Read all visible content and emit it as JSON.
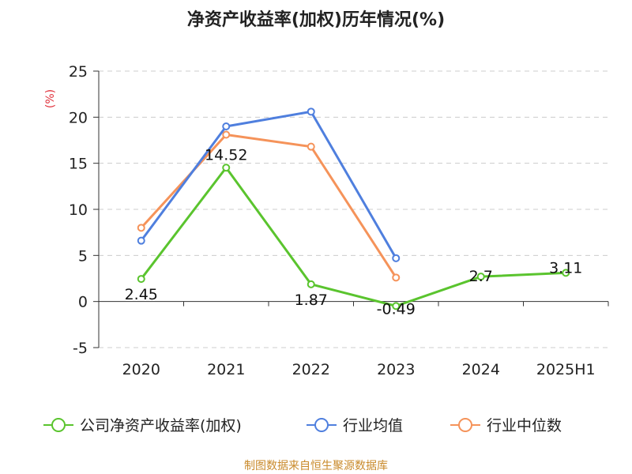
{
  "chart_data": {
    "type": "line",
    "title": "净资产收益率(加权)历年情况(%)",
    "ylabel": "(%)",
    "categories": [
      "2020",
      "2021",
      "2022",
      "2023",
      "2024",
      "2025H1"
    ],
    "ylim": [
      -5,
      25
    ],
    "yticks": [
      25,
      20,
      15,
      10,
      5,
      0,
      -5
    ],
    "grid": true,
    "legend_position": "bottom",
    "series": [
      {
        "name": "公司净资产收益率(加权)",
        "color": "#5ac42e",
        "values": [
          2.45,
          14.52,
          1.87,
          -0.49,
          2.7,
          3.11
        ],
        "labels": [
          "2.45",
          "14.52",
          "1.87",
          "-0.49",
          "2.7",
          "3.11"
        ]
      },
      {
        "name": "行业均值",
        "color": "#4f7fde",
        "values": [
          6.6,
          19.0,
          20.6,
          4.7,
          null,
          null
        ]
      },
      {
        "name": "行业中位数",
        "color": "#f5935a",
        "values": [
          8.0,
          18.1,
          16.8,
          2.6,
          null,
          null
        ]
      }
    ]
  },
  "source": "制图数据来自恒生聚源数据库"
}
